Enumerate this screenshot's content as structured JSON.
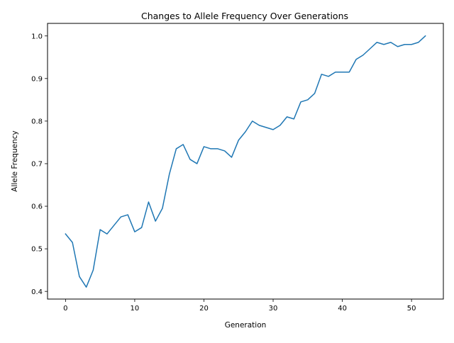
{
  "chart_data": {
    "type": "line",
    "title": "Changes to Allele Frequency Over Generations",
    "xlabel": "Generation",
    "ylabel": "Allele Frequency",
    "xlim": [
      -2.6,
      54.6
    ],
    "ylim": [
      0.382,
      1.0295
    ],
    "xticks": [
      0,
      10,
      20,
      30,
      40,
      50
    ],
    "xtick_labels": [
      "0",
      "10",
      "20",
      "30",
      "40",
      "50"
    ],
    "yticks": [
      0.4,
      0.5,
      0.6,
      0.7,
      0.8,
      0.9,
      1.0
    ],
    "ytick_labels": [
      "0.4",
      "0.5",
      "0.6",
      "0.7",
      "0.8",
      "0.9",
      "1.0"
    ],
    "grid": false,
    "legend": "none",
    "series": [
      {
        "color": "#1f77b4",
        "x": [
          0,
          1,
          2,
          3,
          4,
          5,
          6,
          7,
          8,
          9,
          10,
          11,
          12,
          13,
          14,
          15,
          16,
          17,
          18,
          19,
          20,
          21,
          22,
          23,
          24,
          25,
          26,
          27,
          28,
          29,
          30,
          31,
          32,
          33,
          34,
          35,
          36,
          37,
          38,
          39,
          40,
          41,
          42,
          43,
          44,
          45,
          46,
          47,
          48,
          49,
          50,
          51,
          52
        ],
        "values": [
          0.535,
          0.515,
          0.435,
          0.41,
          0.45,
          0.545,
          0.535,
          0.555,
          0.575,
          0.58,
          0.54,
          0.55,
          0.61,
          0.565,
          0.595,
          0.675,
          0.735,
          0.745,
          0.71,
          0.7,
          0.74,
          0.735,
          0.735,
          0.73,
          0.715,
          0.755,
          0.775,
          0.8,
          0.79,
          0.785,
          0.78,
          0.79,
          0.81,
          0.805,
          0.845,
          0.85,
          0.865,
          0.91,
          0.905,
          0.915,
          0.915,
          0.915,
          0.945,
          0.955,
          0.97,
          0.985,
          0.98,
          0.985,
          0.975,
          0.98,
          0.98,
          0.985,
          1.0
        ]
      }
    ]
  }
}
